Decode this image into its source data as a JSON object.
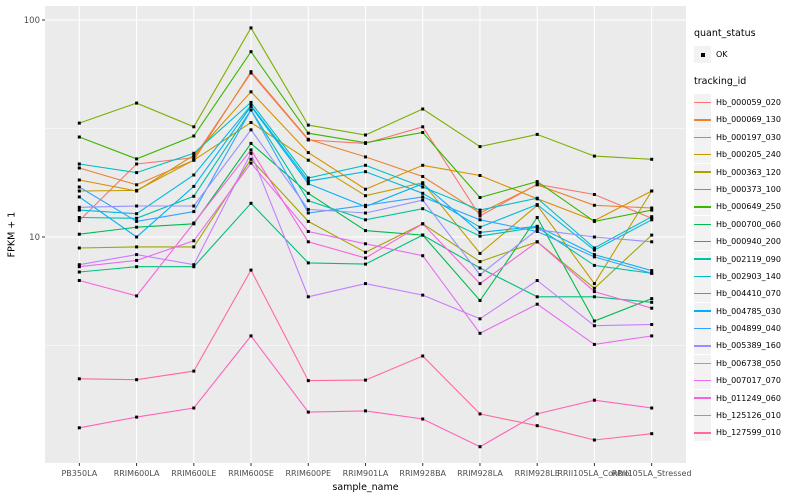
{
  "figure": {
    "xlabel": "sample_name",
    "ylabel": "FPKM + 1"
  },
  "legend": {
    "quant_status": {
      "title": "quant_status",
      "items": [
        {
          "label": "OK",
          "shape": "square",
          "color": "#000000"
        }
      ]
    },
    "tracking": {
      "title": "tracking_id"
    }
  },
  "colors": {
    "panel_background": "#EBEBEB",
    "grid": "#FFFFFF",
    "tick_label": "#4D4D4D",
    "tick_mark": "#333333",
    "point": "#000000",
    "legend_key_background": "#F2F2F2"
  },
  "chart_data": {
    "type": "line",
    "title": "",
    "xlabel": "sample_name",
    "ylabel": "FPKM + 1",
    "yscale": "log10",
    "yticks": [
      10,
      100
    ],
    "yminor": [
      3.162,
      31.623
    ],
    "ylim": [
      0.9,
      116
    ],
    "grid": true,
    "legend_position": "right",
    "point_shape": "filled-square",
    "categories": [
      "PB350LA",
      "RRIM600LA",
      "RRIM600LE",
      "RRIM600SE",
      "RRIM600PE",
      "RRIM901LA",
      "RRIM928BA",
      "RRIM928LA",
      "RRIM928LE",
      "RRII105LA_Control",
      "RRII105LA_Stressed"
    ],
    "series": [
      {
        "name": "Hb_000059_020",
        "color": "#F8766D",
        "values": [
          11.9,
          21.7,
          23.2,
          57.0,
          28.0,
          27.0,
          32.2,
          12.5,
          17.5,
          15.7,
          12.2
        ]
      },
      {
        "name": "Hb_000069_130",
        "color": "#EA8331",
        "values": [
          20.8,
          17.4,
          22.6,
          57.8,
          28.2,
          23.4,
          19.0,
          12.9,
          17.4,
          14.0,
          13.6
        ]
      },
      {
        "name": "Hb_000197_030",
        "color": "#D89000",
        "values": [
          18.3,
          16.3,
          23.8,
          46.7,
          24.5,
          16.6,
          21.4,
          19.2,
          15.0,
          11.9,
          16.3
        ]
      },
      {
        "name": "Hb_000205_240",
        "color": "#C09B00",
        "values": [
          16.3,
          16.4,
          22.6,
          33.7,
          22.6,
          15.5,
          17.8,
          8.4,
          14.0,
          6.1,
          16.3
        ]
      },
      {
        "name": "Hb_000363_120",
        "color": "#A3A500",
        "values": [
          8.9,
          9.0,
          9.0,
          22.8,
          11.8,
          8.5,
          11.5,
          7.7,
          9.5,
          5.8,
          10.2
        ]
      },
      {
        "name": "Hb_000373_100",
        "color": "#7CAE00",
        "values": [
          33.5,
          41.4,
          32.2,
          92.0,
          32.8,
          29.5,
          38.9,
          26.1,
          29.7,
          23.6,
          22.8
        ]
      },
      {
        "name": "Hb_000649_250",
        "color": "#39B600",
        "values": [
          28.9,
          22.9,
          29.2,
          71.4,
          30.1,
          27.2,
          30.3,
          15.2,
          18.0,
          11.8,
          13.3
        ]
      },
      {
        "name": "Hb_000700_060",
        "color": "#00BB4E",
        "values": [
          10.3,
          11.1,
          11.5,
          27.0,
          15.9,
          10.7,
          10.2,
          5.1,
          12.3,
          4.1,
          5.2
        ]
      },
      {
        "name": "Hb_000940_200",
        "color": "#00BF7D",
        "values": [
          6.9,
          7.3,
          7.3,
          14.3,
          7.6,
          7.5,
          10.2,
          7.2,
          5.3,
          5.3,
          5.0
        ]
      },
      {
        "name": "Hb_002119_090",
        "color": "#00C1A3",
        "values": [
          12.3,
          12.2,
          15.4,
          38.5,
          14.7,
          12.0,
          13.5,
          10.1,
          11.1,
          7.4,
          6.8
        ]
      },
      {
        "name": "Hb_002903_140",
        "color": "#00BFC4",
        "values": [
          21.7,
          19.8,
          24.3,
          41.7,
          18.7,
          21.4,
          17.0,
          13.3,
          15.1,
          8.9,
          12.4
        ]
      },
      {
        "name": "Hb_004410_070",
        "color": "#00BAE0",
        "values": [
          13.3,
          12.8,
          19.3,
          40.4,
          18.1,
          20.0,
          15.9,
          11.1,
          14.1,
          8.7,
          12.0
        ]
      },
      {
        "name": "Hb_004785_030",
        "color": "#00B0F6",
        "values": [
          15.3,
          10.0,
          17.1,
          40.0,
          17.6,
          13.8,
          17.6,
          10.5,
          11.2,
          8.3,
          7.0
        ]
      },
      {
        "name": "Hb_004899_040",
        "color": "#35A2FF",
        "values": [
          17.0,
          11.8,
          13.1,
          38.5,
          12.9,
          14.0,
          15.3,
          12.0,
          10.6,
          8.1,
          6.8
        ]
      },
      {
        "name": "Hb_005389_160",
        "color": "#9590FF",
        "values": [
          13.7,
          13.9,
          13.9,
          31.2,
          13.4,
          12.9,
          14.8,
          6.7,
          10.8,
          10.0,
          9.5
        ]
      },
      {
        "name": "Hb_006738_050",
        "color": "#C77CFF",
        "values": [
          7.45,
          8.3,
          7.45,
          24.3,
          5.3,
          6.1,
          5.4,
          4.2,
          6.3,
          3.9,
          3.95
        ]
      },
      {
        "name": "Hb_007017_070",
        "color": "#E76BF3",
        "values": [
          7.3,
          7.8,
          9.6,
          21.9,
          10.6,
          9.3,
          8.2,
          3.6,
          4.9,
          3.2,
          3.5
        ]
      },
      {
        "name": "Hb_011249_060",
        "color": "#FA62DB",
        "values": [
          6.3,
          5.35,
          11.6,
          25.2,
          9.5,
          8.0,
          11.5,
          6.1,
          9.5,
          5.6,
          4.7
        ]
      },
      {
        "name": "Hb_125126_010",
        "color": "#FF62BC",
        "values": [
          1.32,
          1.48,
          1.63,
          3.5,
          1.56,
          1.58,
          1.45,
          1.08,
          1.53,
          1.77,
          1.63
        ]
      },
      {
        "name": "Hb_127599_010",
        "color": "#FF6A98",
        "values": [
          2.22,
          2.2,
          2.41,
          7.04,
          2.18,
          2.19,
          2.83,
          1.53,
          1.35,
          1.16,
          1.24
        ]
      }
    ]
  }
}
